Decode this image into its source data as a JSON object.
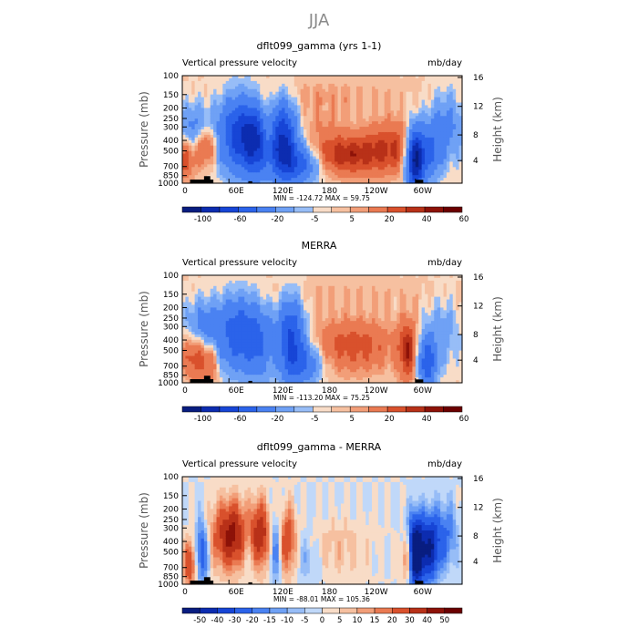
{
  "title": "JJA",
  "chart_data": [
    {
      "type": "heatmap",
      "title": "dflt099_gamma (yrs 1-1)",
      "subtitle_left": "Vertical pressure velocity",
      "subtitle_right": "mb/day",
      "ylabel": "Pressure (mb)",
      "y2label": "Height (km)",
      "x_ticks": [
        "0",
        "60E",
        "120E",
        "180",
        "120W",
        "60W"
      ],
      "x_tick_values": [
        0,
        60,
        120,
        180,
        240,
        300
      ],
      "xlim": [
        0,
        360
      ],
      "y_ticks": [
        "100",
        "150",
        "200",
        "250",
        "300",
        "400",
        "500",
        "700",
        "850",
        "1000"
      ],
      "y_tick_values": [
        100,
        150,
        200,
        250,
        300,
        400,
        500,
        700,
        850,
        1000
      ],
      "ylim": [
        1000,
        100
      ],
      "y_scale": "log",
      "y2_ticks": [
        "4",
        "8",
        "12",
        "16"
      ],
      "minmax": "MIN = -124.72   MAX =  59.75",
      "colorbar_labels": [
        "-100",
        "-60",
        "-20",
        "-5",
        "5",
        "20",
        "40",
        "60"
      ],
      "colorbar_levels": [
        -120,
        -100,
        -80,
        -60,
        -40,
        -20,
        -10,
        -5,
        0,
        5,
        10,
        20,
        30,
        40,
        50,
        60
      ],
      "features": [
        {
          "lon": 30,
          "p": 450,
          "sx": 10,
          "sy": 0.6,
          "v": 30
        },
        {
          "lon": 15,
          "p": 300,
          "sx": 12,
          "sy": 0.7,
          "v": -25
        },
        {
          "lon": 5,
          "p": 600,
          "sx": 8,
          "sy": 0.6,
          "v": 25
        },
        {
          "lon": 75,
          "p": 350,
          "sx": 20,
          "sy": 1.1,
          "v": -70
        },
        {
          "lon": 95,
          "p": 450,
          "sx": 12,
          "sy": 1.0,
          "v": -50
        },
        {
          "lon": 110,
          "p": 300,
          "sx": 6,
          "sy": 0.8,
          "v": 20
        },
        {
          "lon": 130,
          "p": 400,
          "sx": 12,
          "sy": 1.1,
          "v": -80
        },
        {
          "lon": 150,
          "p": 650,
          "sx": 20,
          "sy": 0.6,
          "v": -50
        },
        {
          "lon": 180,
          "p": 300,
          "sx": 25,
          "sy": 0.8,
          "v": 8
        },
        {
          "lon": 210,
          "p": 550,
          "sx": 35,
          "sy": 0.6,
          "v": 35
        },
        {
          "lon": 270,
          "p": 450,
          "sx": 25,
          "sy": 0.8,
          "v": 25
        },
        {
          "lon": 300,
          "p": 600,
          "sx": 8,
          "sy": 0.9,
          "v": -110
        },
        {
          "lon": 320,
          "p": 500,
          "sx": 10,
          "sy": 0.8,
          "v": -40
        },
        {
          "lon": 340,
          "p": 300,
          "sx": 15,
          "sy": 1.0,
          "v": -25
        },
        {
          "lon": 180,
          "p": 150,
          "sx": 80,
          "sy": 0.5,
          "v": 6
        }
      ]
    },
    {
      "type": "heatmap",
      "title": "MERRA",
      "subtitle_left": "Vertical pressure velocity",
      "subtitle_right": "mb/day",
      "ylabel": "Pressure (mb)",
      "y2label": "Height (km)",
      "x_ticks": [
        "0",
        "60E",
        "120E",
        "180",
        "120W",
        "60W"
      ],
      "x_tick_values": [
        0,
        60,
        120,
        180,
        240,
        300
      ],
      "xlim": [
        0,
        360
      ],
      "y_ticks": [
        "100",
        "150",
        "200",
        "250",
        "300",
        "400",
        "500",
        "700",
        "850",
        "1000"
      ],
      "y_tick_values": [
        100,
        150,
        200,
        250,
        300,
        400,
        500,
        700,
        850,
        1000
      ],
      "ylim": [
        1000,
        100
      ],
      "y_scale": "log",
      "y2_ticks": [
        "4",
        "8",
        "12",
        "16"
      ],
      "minmax": "MIN = -113.20   MAX =  75.25",
      "colorbar_labels": [
        "-100",
        "-60",
        "-20",
        "-5",
        "5",
        "20",
        "40",
        "60"
      ],
      "colorbar_levels": [
        -120,
        -100,
        -80,
        -60,
        -40,
        -20,
        -10,
        -5,
        0,
        5,
        10,
        20,
        30,
        40,
        50,
        60
      ],
      "features": [
        {
          "lon": 15,
          "p": 550,
          "sx": 10,
          "sy": 0.7,
          "v": 30
        },
        {
          "lon": 35,
          "p": 650,
          "sx": 8,
          "sy": 0.7,
          "v": 25
        },
        {
          "lon": 25,
          "p": 300,
          "sx": 15,
          "sy": 0.8,
          "v": -25
        },
        {
          "lon": 75,
          "p": 350,
          "sx": 22,
          "sy": 1.1,
          "v": -55
        },
        {
          "lon": 100,
          "p": 500,
          "sx": 12,
          "sy": 1.0,
          "v": -20
        },
        {
          "lon": 140,
          "p": 400,
          "sx": 12,
          "sy": 1.2,
          "v": -65
        },
        {
          "lon": 160,
          "p": 650,
          "sx": 15,
          "sy": 0.6,
          "v": -35
        },
        {
          "lon": 220,
          "p": 450,
          "sx": 40,
          "sy": 0.8,
          "v": 25
        },
        {
          "lon": 290,
          "p": 500,
          "sx": 8,
          "sy": 0.9,
          "v": 35
        },
        {
          "lon": 315,
          "p": 650,
          "sx": 8,
          "sy": 0.8,
          "v": -55
        },
        {
          "lon": 335,
          "p": 350,
          "sx": 15,
          "sy": 1.0,
          "v": -15
        },
        {
          "lon": 180,
          "p": 150,
          "sx": 90,
          "sy": 0.5,
          "v": 5
        }
      ]
    },
    {
      "type": "heatmap",
      "title": "dflt099_gamma - MERRA",
      "subtitle_left": "Vertical pressure velocity",
      "subtitle_right": "mb/day",
      "ylabel": "Pressure (mb)",
      "y2label": "Height (km)",
      "x_ticks": [
        "0",
        "60E",
        "120E",
        "180",
        "120W",
        "60W"
      ],
      "x_tick_values": [
        0,
        60,
        120,
        180,
        240,
        300
      ],
      "xlim": [
        0,
        360
      ],
      "y_ticks": [
        "100",
        "150",
        "200",
        "250",
        "300",
        "400",
        "500",
        "700",
        "850",
        "1000"
      ],
      "y_tick_values": [
        100,
        150,
        200,
        250,
        300,
        400,
        500,
        700,
        850,
        1000
      ],
      "ylim": [
        1000,
        100
      ],
      "y_scale": "log",
      "y2_ticks": [
        "4",
        "8",
        "12",
        "16"
      ],
      "minmax": "MIN = -88.01   MAX = 105.36",
      "colorbar_labels": [
        "-50",
        "-40",
        "-30",
        "-20",
        "-15",
        "-10",
        "-5",
        "0",
        "5",
        "10",
        "15",
        "20",
        "30",
        "40",
        "50"
      ],
      "colorbar_levels": [
        -60,
        -50,
        -40,
        -30,
        -20,
        -15,
        -10,
        -5,
        0,
        5,
        10,
        15,
        20,
        30,
        40,
        50,
        60
      ],
      "features": [
        {
          "lon": 10,
          "p": 650,
          "sx": 6,
          "sy": 0.7,
          "v": 30
        },
        {
          "lon": 25,
          "p": 500,
          "sx": 6,
          "sy": 1.0,
          "v": -30
        },
        {
          "lon": 65,
          "p": 350,
          "sx": 18,
          "sy": 1.0,
          "v": 45
        },
        {
          "lon": 85,
          "p": 400,
          "sx": 8,
          "sy": 1.0,
          "v": -20
        },
        {
          "lon": 100,
          "p": 350,
          "sx": 10,
          "sy": 1.0,
          "v": 35
        },
        {
          "lon": 120,
          "p": 450,
          "sx": 6,
          "sy": 1.0,
          "v": -25
        },
        {
          "lon": 135,
          "p": 400,
          "sx": 8,
          "sy": 1.0,
          "v": 30
        },
        {
          "lon": 160,
          "p": 550,
          "sx": 12,
          "sy": 0.8,
          "v": -10
        },
        {
          "lon": 200,
          "p": 450,
          "sx": 30,
          "sy": 0.8,
          "v": 8
        },
        {
          "lon": 300,
          "p": 500,
          "sx": 8,
          "sy": 1.0,
          "v": -80
        },
        {
          "lon": 320,
          "p": 450,
          "sx": 8,
          "sy": 1.0,
          "v": -45
        },
        {
          "lon": 290,
          "p": 550,
          "sx": 5,
          "sy": 0.8,
          "v": 40
        },
        {
          "lon": 340,
          "p": 350,
          "sx": 10,
          "sy": 1.0,
          "v": -20
        }
      ]
    }
  ],
  "colors": {
    "neg": [
      "#081d80",
      "#0c2cb0",
      "#1745d6",
      "#2b63ea",
      "#4a82f2",
      "#6fa1f5",
      "#97bdf7",
      "#c0d8f9"
    ],
    "pos": [
      "#f8dcc7",
      "#f6c0a0",
      "#f29e78",
      "#ea7a52",
      "#d9512c",
      "#b83118",
      "#8d1208",
      "#6b0000"
    ],
    "diff_neg": [
      "#081d80",
      "#0c2cb0",
      "#1745d6",
      "#2b63ea",
      "#4a82f2",
      "#6fa1f5",
      "#97bdf7",
      "#c0d8f9"
    ],
    "diff_pos": [
      "#f8dcc7",
      "#f6c0a0",
      "#f29e78",
      "#ea7a52",
      "#d9512c",
      "#b83118",
      "#8d1208",
      "#6b0000"
    ]
  }
}
